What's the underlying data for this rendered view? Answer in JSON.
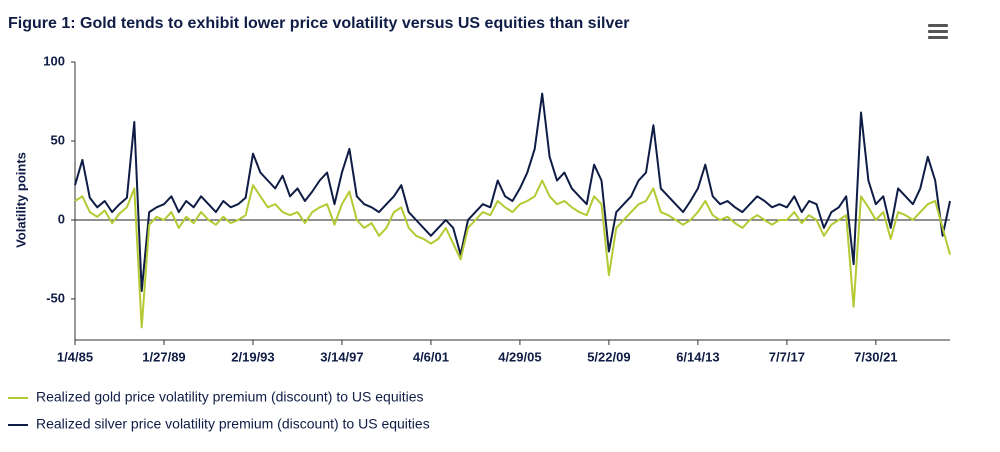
{
  "chart_data": {
    "type": "line",
    "title": "Figure 1: Gold tends to exhibit lower price volatility versus US equities than silver",
    "y_label": "Volatility points",
    "categories": [
      "1/4/85",
      null,
      null,
      null,
      null,
      null,
      null,
      null,
      null,
      null,
      null,
      null,
      "1/27/89",
      null,
      null,
      null,
      null,
      null,
      null,
      null,
      null,
      null,
      null,
      null,
      "2/19/93",
      null,
      null,
      null,
      null,
      null,
      null,
      null,
      null,
      null,
      null,
      null,
      "3/14/97",
      null,
      null,
      null,
      null,
      null,
      null,
      null,
      null,
      null,
      null,
      null,
      "4/6/01",
      null,
      null,
      null,
      null,
      null,
      null,
      null,
      null,
      null,
      null,
      null,
      "4/29/05",
      null,
      null,
      null,
      null,
      null,
      null,
      null,
      null,
      null,
      null,
      null,
      "5/22/09",
      null,
      null,
      null,
      null,
      null,
      null,
      null,
      null,
      null,
      null,
      null,
      "6/14/13",
      null,
      null,
      null,
      null,
      null,
      null,
      null,
      null,
      null,
      null,
      null,
      "7/7/17",
      null,
      null,
      null,
      null,
      null,
      null,
      null,
      null,
      null,
      null,
      null,
      "7/30/21",
      null,
      null,
      null,
      null,
      null,
      null,
      null,
      null,
      null,
      null
    ],
    "series": [
      {
        "name": "Realized silver price volatility premium (discount) to US equities",
        "color": "#0f1c45",
        "values": [
          22,
          38,
          14,
          8,
          12,
          5,
          10,
          14,
          62,
          -45,
          5,
          8,
          10,
          15,
          5,
          12,
          8,
          15,
          10,
          5,
          12,
          8,
          10,
          14,
          42,
          30,
          25,
          20,
          28,
          15,
          20,
          12,
          18,
          25,
          30,
          10,
          30,
          45,
          15,
          10,
          8,
          5,
          10,
          15,
          22,
          5,
          0,
          -5,
          -10,
          -5,
          0,
          -5,
          -22,
          0,
          5,
          10,
          8,
          25,
          15,
          12,
          20,
          30,
          45,
          80,
          40,
          25,
          30,
          20,
          15,
          10,
          35,
          25,
          -20,
          5,
          10,
          15,
          25,
          30,
          60,
          20,
          15,
          10,
          5,
          12,
          20,
          35,
          15,
          10,
          12,
          8,
          5,
          10,
          15,
          12,
          8,
          10,
          8,
          15,
          5,
          12,
          10,
          -5,
          5,
          8,
          15,
          -28,
          68,
          25,
          10,
          15,
          -5,
          20,
          15,
          10,
          20,
          40,
          25,
          -10,
          12
        ]
      },
      {
        "name": "Realized gold price volatility premium (discount) to US equities",
        "color": "#b5c934",
        "values": [
          12,
          15,
          5,
          2,
          6,
          -2,
          4,
          8,
          20,
          -68,
          -3,
          2,
          0,
          5,
          -5,
          2,
          -2,
          5,
          0,
          -3,
          2,
          -2,
          0,
          3,
          22,
          15,
          8,
          10,
          5,
          3,
          5,
          -2,
          5,
          8,
          10,
          -3,
          10,
          18,
          0,
          -5,
          -2,
          -10,
          -5,
          5,
          8,
          -5,
          -10,
          -12,
          -15,
          -12,
          -5,
          -15,
          -25,
          -5,
          0,
          5,
          3,
          12,
          8,
          5,
          10,
          12,
          15,
          25,
          15,
          10,
          12,
          8,
          5,
          3,
          15,
          10,
          -35,
          -5,
          0,
          5,
          10,
          12,
          20,
          5,
          3,
          0,
          -3,
          0,
          5,
          12,
          3,
          0,
          2,
          -2,
          -5,
          0,
          3,
          0,
          -3,
          0,
          0,
          5,
          -2,
          3,
          0,
          -10,
          -3,
          0,
          3,
          -55,
          15,
          8,
          0,
          5,
          -12,
          5,
          3,
          0,
          5,
          10,
          12,
          -5,
          -22
        ]
      }
    ],
    "ylim": [
      -76,
      100
    ],
    "yticks": [
      -50,
      0,
      50,
      100
    ],
    "zero_line": true,
    "legend": "bottom-left"
  }
}
